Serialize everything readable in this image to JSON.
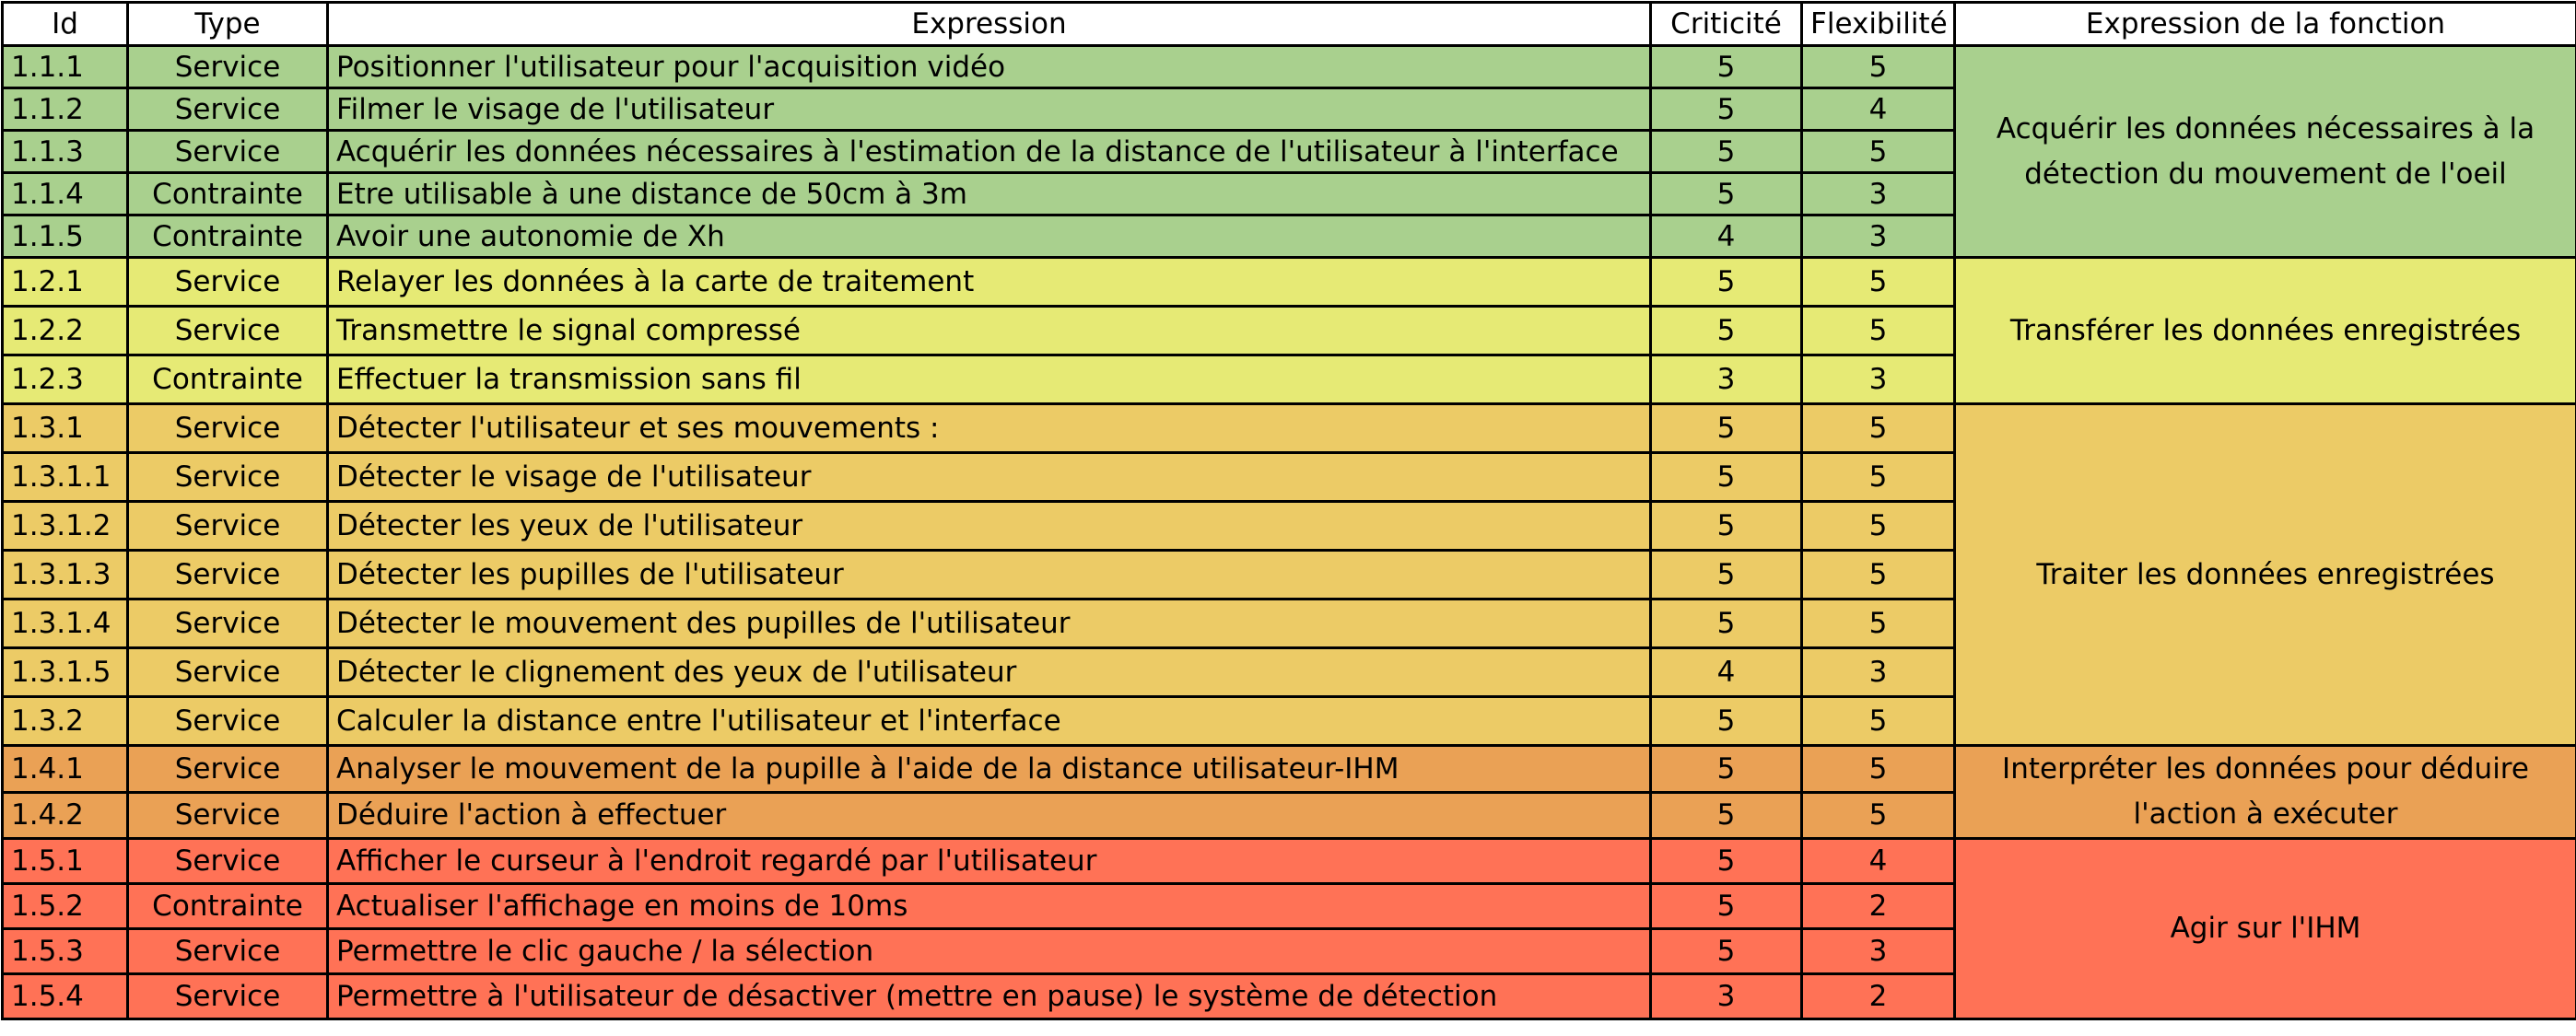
{
  "headers": {
    "id": "Id",
    "type": "Type",
    "expression": "Expression",
    "criticite": "Criticité",
    "flexibilite": "Flexibilité",
    "fonction": "Expression de la fonction"
  },
  "groups": [
    {
      "color": "#a9d08e",
      "function": "Acquérir les données nécessaires à la détection du mouvement de l'oeil",
      "rows": [
        {
          "id": "1.1.1",
          "type": "Service",
          "expression": "Positionner l'utilisateur pour l'acquisition vidéo",
          "criticite": "5",
          "flexibilite": "5"
        },
        {
          "id": "1.1.2",
          "type": "Service",
          "expression": "Filmer le visage de l'utilisateur",
          "criticite": "5",
          "flexibilite": "4"
        },
        {
          "id": "1.1.3",
          "type": "Service",
          "expression": "Acquérir les données nécessaires à l'estimation de la distance de l'utilisateur à l'interface",
          "criticite": "5",
          "flexibilite": "5"
        },
        {
          "id": "1.1.4",
          "type": "Contrainte",
          "expression": "Etre utilisable à une distance de 50cm à 3m",
          "criticite": "5",
          "flexibilite": "3"
        },
        {
          "id": "1.1.5",
          "type": "Contrainte",
          "expression": "Avoir une autonomie de Xh",
          "criticite": "4",
          "flexibilite": "3"
        }
      ]
    },
    {
      "color": "#e6ea75",
      "function": "Transférer les données enregistrées",
      "rows": [
        {
          "id": "1.2.1",
          "type": "Service",
          "expression": "Relayer les données à la carte de traitement",
          "criticite": "5",
          "flexibilite": "5"
        },
        {
          "id": "1.2.2",
          "type": "Service",
          "expression": "Transmettre le signal compressé",
          "criticite": "5",
          "flexibilite": "5"
        },
        {
          "id": "1.2.3",
          "type": "Contrainte",
          "expression": "Effectuer la transmission sans fil",
          "criticite": "3",
          "flexibilite": "3"
        }
      ]
    },
    {
      "color": "#eccb66",
      "function": "Traiter les données enregistrées",
      "rows": [
        {
          "id": "1.3.1",
          "type": "Service",
          "expression": "Détecter l'utilisateur et ses mouvements :",
          "criticite": "5",
          "flexibilite": "5"
        },
        {
          "id": "1.3.1.1",
          "type": "Service",
          "expression": "Détecter le visage de l'utilisateur",
          "criticite": "5",
          "flexibilite": "5"
        },
        {
          "id": "1.3.1.2",
          "type": "Service",
          "expression": "Détecter les yeux de l'utilisateur",
          "criticite": "5",
          "flexibilite": "5"
        },
        {
          "id": "1.3.1.3",
          "type": "Service",
          "expression": "Détecter les pupilles de l'utilisateur",
          "criticite": "5",
          "flexibilite": "5"
        },
        {
          "id": "1.3.1.4",
          "type": "Service",
          "expression": "Détecter le mouvement des pupilles de l'utilisateur",
          "criticite": "5",
          "flexibilite": "5"
        },
        {
          "id": "1.3.1.5",
          "type": "Service",
          "expression": "Détecter le clignement des yeux de l'utilisateur",
          "criticite": "4",
          "flexibilite": "3"
        },
        {
          "id": "1.3.2",
          "type": "Service",
          "expression": "Calculer la distance entre l'utilisateur et l'interface",
          "criticite": "5",
          "flexibilite": "5"
        }
      ]
    },
    {
      "color": "#eaa155",
      "function": "Interpréter les données pour déduire l'action à exécuter",
      "rows": [
        {
          "id": "1.4.1",
          "type": "Service",
          "expression": "Analyser le mouvement de la pupille à l'aide de la distance utilisateur-IHM",
          "criticite": "5",
          "flexibilite": "5"
        },
        {
          "id": "1.4.2",
          "type": "Service",
          "expression": "Déduire l'action à effectuer",
          "criticite": "5",
          "flexibilite": "5"
        }
      ]
    },
    {
      "color": "#ff7256",
      "function": "Agir sur l'IHM",
      "rows": [
        {
          "id": "1.5.1",
          "type": "Service",
          "expression": "Afficher le curseur à l'endroit regardé par l'utilisateur",
          "criticite": "5",
          "flexibilite": "4"
        },
        {
          "id": "1.5.2",
          "type": "Contrainte",
          "expression": "Actualiser l'affichage en moins de 10ms",
          "criticite": "5",
          "flexibilite": "2"
        },
        {
          "id": "1.5.3",
          "type": "Service",
          "expression": "Permettre le clic gauche / la sélection",
          "criticite": "5",
          "flexibilite": "3"
        },
        {
          "id": "1.5.4",
          "type": "Service",
          "expression": "Permettre à l'utilisateur de désactiver (mettre en pause) le système de détection",
          "criticite": "3",
          "flexibilite": "2"
        }
      ]
    }
  ]
}
